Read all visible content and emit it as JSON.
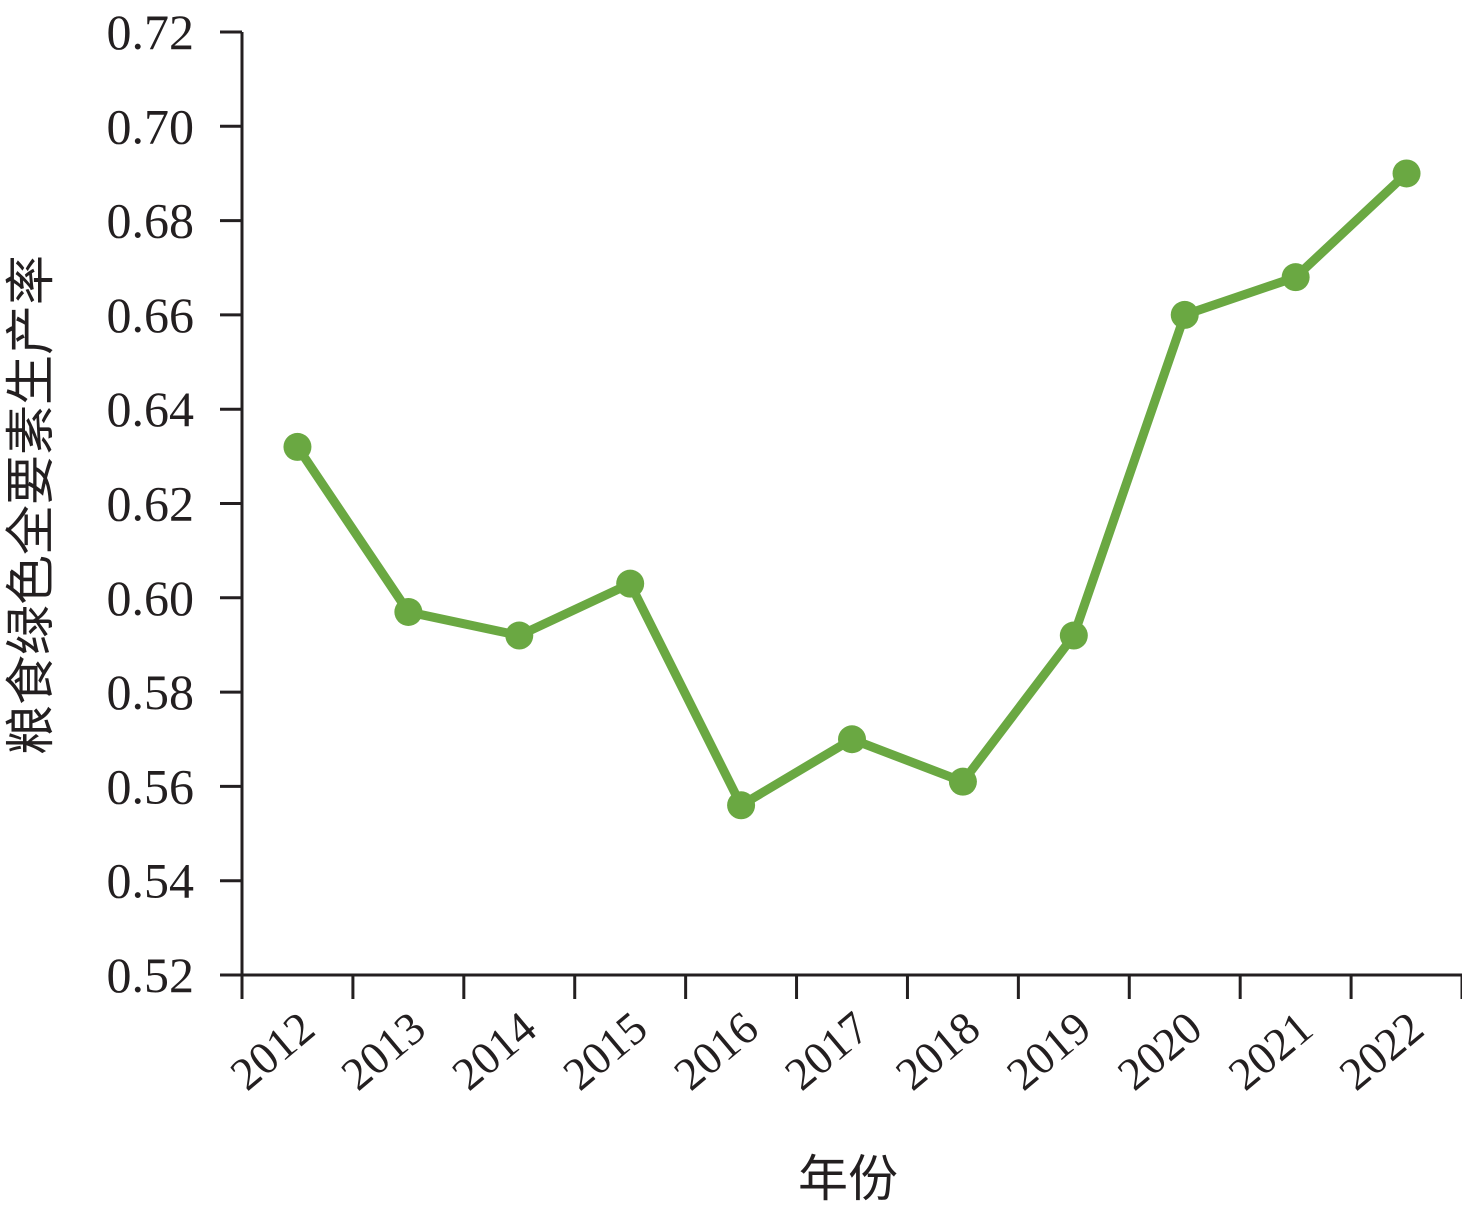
{
  "chart_data": {
    "type": "line",
    "title": "",
    "xlabel": "年份",
    "ylabel": "粮食绿色全要素生产率",
    "categories": [
      "2012",
      "2013",
      "2014",
      "2015",
      "2016",
      "2017",
      "2018",
      "2019",
      "2020",
      "2021",
      "2022"
    ],
    "series": [
      {
        "values": [
          0.632,
          0.597,
          0.592,
          0.603,
          0.556,
          0.57,
          0.561,
          0.592,
          0.66,
          0.668,
          0.69
        ],
        "color": "#6aa842"
      }
    ],
    "yticks": [
      "0.52",
      "0.54",
      "0.56",
      "0.58",
      "0.60",
      "0.62",
      "0.64",
      "0.66",
      "0.68",
      "0.70",
      "0.72"
    ],
    "ylim": [
      0.52,
      0.72
    ],
    "grid": false,
    "legend": "none",
    "marker": "circle"
  }
}
